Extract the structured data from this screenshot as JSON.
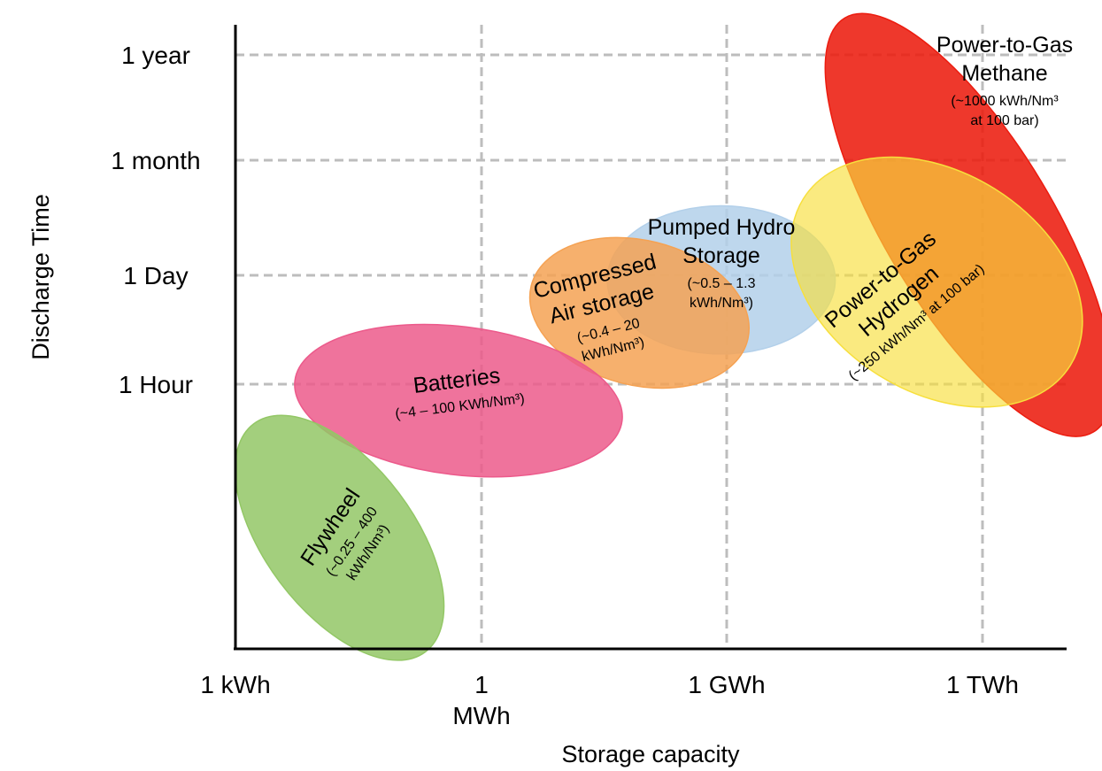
{
  "chart_data": {
    "type": "bubble-region",
    "xlabel": "Storage capacity",
    "ylabel": "Discharge Time",
    "x_ticks": [
      {
        "label": "1 kWh",
        "value": 0
      },
      {
        "label": "1\nMWh",
        "value": 1
      },
      {
        "label": "1 GWh",
        "value": 2
      },
      {
        "label": "1 TWh",
        "value": 3
      }
    ],
    "y_ticks": [
      {
        "label": "1 Hour",
        "value": 1
      },
      {
        "label": "1 Day",
        "value": 2
      },
      {
        "label": "1 month",
        "value": 3
      },
      {
        "label": "1 year",
        "value": 4
      }
    ],
    "xlim": [
      0,
      3.35
    ],
    "ylim": [
      -1.6,
      4.25
    ],
    "grid": true,
    "regions": [
      {
        "name": "Power-to-Gas Methane",
        "lines": [
          "Power-to-Gas",
          "Methane"
        ],
        "sublines": [
          "(~1000 kWh/Nm³",
          "at 100 bar)"
        ],
        "color": "#ec1c0f",
        "opacity": 0.88,
        "center": [
          2.96,
          2.45
        ],
        "width": 0.68,
        "height": 4.4,
        "rotation": 31
      },
      {
        "name": "Pumped Hydro Storage",
        "lines": [
          "Pumped Hydro",
          "Storage"
        ],
        "sublines": [
          "(~0.5 – 1.3",
          "kWh/Nm³)"
        ],
        "color": "#b3d0ea",
        "opacity": 0.85,
        "center": [
          1.96,
          1.95
        ],
        "width": 0.92,
        "height": 1.35,
        "rotation": 0
      },
      {
        "name": "Power-to-Gas Hydrogen",
        "lines": [
          "Power-to-Gas",
          "Hydrogen"
        ],
        "sublines": [
          "(~250 kWh/Nm³ at 100 bar)"
        ],
        "color": "#f7df3c",
        "opacity": 0.65,
        "center": [
          2.83,
          1.93
        ],
        "width": 1.27,
        "height": 2.0,
        "rotation": -32
      },
      {
        "name": "Compressed Air storage",
        "lines": [
          "Compressed",
          "Air storage"
        ],
        "sublines": [
          "(~0.4 – 20",
          "kWh/Nm³)"
        ],
        "color": "#f5a253",
        "opacity": 0.85,
        "center": [
          1.63,
          1.65
        ],
        "width": 0.9,
        "height": 1.32,
        "rotation": -14
      },
      {
        "name": "Batteries",
        "lines": [
          "Batteries"
        ],
        "sublines": [
          "(~4 – 100 KWh/Nm³)"
        ],
        "color": "#ec5a8b",
        "opacity": 0.85,
        "center": [
          0.9,
          0.85
        ],
        "width": 1.33,
        "height": 1.35,
        "rotation": -7
      },
      {
        "name": "Flywheel",
        "lines": [
          "Flywheel"
        ],
        "sublines": [
          "(~0.25 – 400",
          "kWh/Nm³)"
        ],
        "color": "#93c766",
        "opacity": 0.85,
        "center": [
          0.42,
          -0.4
        ],
        "width": 0.6,
        "height": 2.6,
        "rotation": 37
      }
    ]
  }
}
